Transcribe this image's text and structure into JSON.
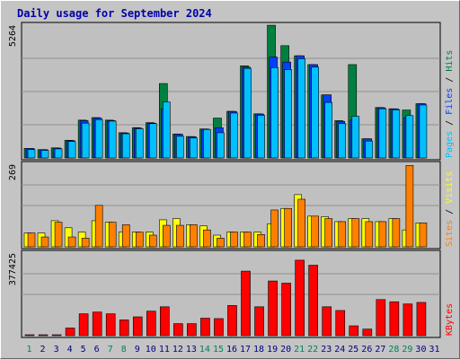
{
  "title": "Daily usage for September 2024",
  "colors": {
    "hits": "#008040",
    "files": "#0040ff",
    "pages": "#00c0ff",
    "visits": "#ffff00",
    "sites": "#ff8000",
    "kbytes": "#ff0000",
    "weekend_day": "#00805c",
    "weekday": "#000080",
    "plot_bg": "#c0c0c0",
    "frame_bg": "#c4c4c4"
  },
  "chart_data": [
    {
      "type": "bar",
      "panel": "top",
      "y_max_label": "5264",
      "ylim": [
        0,
        5264
      ],
      "legend": [
        "Pages",
        "Files",
        "Hits"
      ],
      "legend_sep": "/",
      "x": [
        1,
        2,
        3,
        4,
        5,
        6,
        7,
        8,
        9,
        10,
        11,
        12,
        13,
        14,
        15,
        16,
        17,
        18,
        19,
        20,
        21,
        22,
        23,
        24,
        25,
        26,
        27,
        28,
        29,
        30,
        31
      ],
      "series": [
        {
          "name": "Hits",
          "values": [
            380,
            330,
            400,
            700,
            1500,
            1600,
            1500,
            1000,
            1200,
            1400,
            2950,
            950,
            850,
            1150,
            1580,
            1850,
            3650,
            1750,
            5260,
            4450,
            4050,
            3700,
            2500,
            1480,
            3700,
            760,
            2000,
            1950,
            1900,
            2150,
            null
          ]
        },
        {
          "name": "Files",
          "values": [
            380,
            330,
            390,
            690,
            1480,
            1580,
            1480,
            990,
            1180,
            1380,
            1950,
            940,
            840,
            1140,
            1200,
            1840,
            3600,
            1740,
            4000,
            3800,
            4050,
            3700,
            2500,
            1450,
            1500,
            760,
            1990,
            1940,
            1600,
            2150,
            null
          ]
        },
        {
          "name": "Pages",
          "values": [
            330,
            300,
            360,
            650,
            1380,
            1520,
            1460,
            960,
            1160,
            1360,
            2220,
            860,
            790,
            1130,
            1000,
            1780,
            3550,
            1690,
            3580,
            3500,
            3930,
            3600,
            2200,
            1360,
            1650,
            670,
            1950,
            1910,
            1680,
            2100,
            null
          ]
        }
      ]
    },
    {
      "type": "bar",
      "panel": "middle",
      "y_max_label": "269",
      "ylim": [
        0,
        269
      ],
      "legend": [
        "Sites",
        "Visits"
      ],
      "legend_sep": "/",
      "x": [
        1,
        2,
        3,
        4,
        5,
        6,
        7,
        8,
        9,
        10,
        11,
        12,
        13,
        14,
        15,
        16,
        17,
        18,
        19,
        20,
        21,
        22,
        23,
        24,
        25,
        26,
        27,
        28,
        29,
        30,
        31
      ],
      "series": [
        {
          "name": "Visits",
          "values": [
            45,
            45,
            85,
            62,
            48,
            85,
            80,
            48,
            48,
            48,
            88,
            92,
            72,
            68,
            38,
            48,
            48,
            48,
            75,
            125,
            170,
            100,
            98,
            82,
            92,
            92,
            82,
            92,
            55,
            78,
            null
          ]
        },
        {
          "name": "Sites",
          "values": [
            45,
            32,
            80,
            32,
            28,
            135,
            80,
            72,
            48,
            38,
            70,
            70,
            72,
            55,
            28,
            48,
            48,
            40,
            120,
            125,
            155,
            100,
            92,
            82,
            92,
            82,
            82,
            92,
            265,
            78,
            null
          ]
        }
      ]
    },
    {
      "type": "bar",
      "panel": "bottom",
      "y_max_label": "377425",
      "ylim": [
        0,
        377425
      ],
      "legend": [
        "KBytes"
      ],
      "legend_sep": "",
      "x": [
        1,
        2,
        3,
        4,
        5,
        6,
        7,
        8,
        9,
        10,
        11,
        12,
        13,
        14,
        15,
        16,
        17,
        18,
        19,
        20,
        21,
        22,
        23,
        24,
        25,
        26,
        27,
        28,
        29,
        30,
        31
      ],
      "series": [
        {
          "name": "KBytes",
          "values": [
            0,
            0,
            0,
            35000,
            100000,
            108000,
            100000,
            72000,
            86000,
            112000,
            132000,
            55000,
            55000,
            80000,
            78000,
            138000,
            295000,
            132000,
            250000,
            240000,
            345000,
            322000,
            132000,
            115000,
            45000,
            30000,
            165000,
            155000,
            145000,
            152000,
            null
          ]
        }
      ]
    }
  ],
  "days": [
    "1",
    "2",
    "3",
    "4",
    "5",
    "6",
    "7",
    "8",
    "9",
    "10",
    "11",
    "12",
    "13",
    "14",
    "15",
    "16",
    "17",
    "18",
    "19",
    "20",
    "21",
    "22",
    "23",
    "24",
    "25",
    "26",
    "27",
    "28",
    "29",
    "30",
    "31"
  ],
  "weekend_days": [
    1,
    7,
    8,
    14,
    15,
    21,
    22,
    28,
    29
  ]
}
